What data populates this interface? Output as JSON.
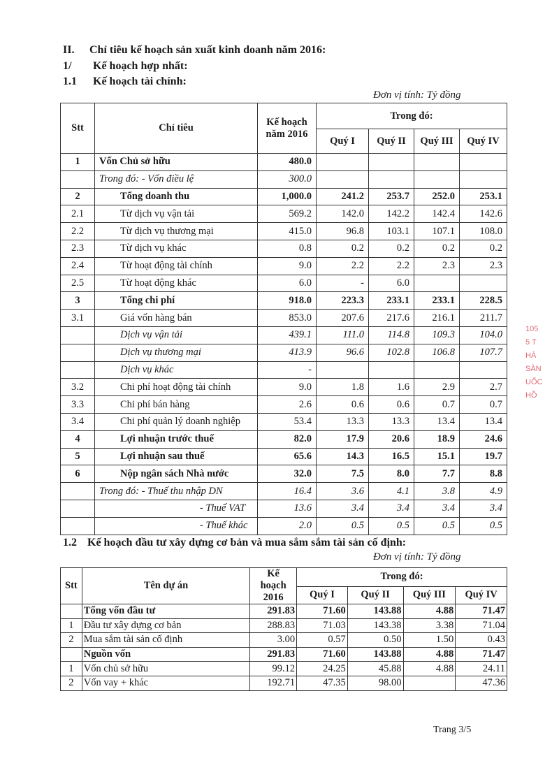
{
  "headings": {
    "section": "II.",
    "section_title": "Chỉ tiêu kế hoạch sản xuất kinh doanh năm 2016:",
    "sub1": "1/",
    "sub1_title": "Kế hoạch hợp nhất:",
    "sub11": "1.1",
    "sub11_title": "Kế hoạch tài chính:",
    "sub12": "1.2",
    "sub12_title": "Kế hoạch đầu tư xây dựng cơ bản và mua sắm sắm tài sản cố định:"
  },
  "unit_label": "Đơn vị tính: Tỷ đồng",
  "table1": {
    "headers": {
      "stt": "Stt",
      "item": "Chỉ tiêu",
      "plan": "Kế hoạch năm 2016",
      "of_which": "Trong đó:",
      "q1": "Quý I",
      "q2": "Quý II",
      "q3": "Quý III",
      "q4": "Quý IV"
    },
    "rows": [
      {
        "stt": "1",
        "label": "Vốn Chủ sở hữu",
        "plan": "480.0",
        "q": [
          "",
          "",
          "",
          ""
        ],
        "style": "bold",
        "indent": 0
      },
      {
        "stt": "",
        "label": "Trong đó: - Vốn điều lệ",
        "plan": "300.0",
        "q": [
          "",
          "",
          "",
          ""
        ],
        "style": "italic",
        "indent": 0
      },
      {
        "stt": "2",
        "label": "Tổng doanh thu",
        "plan": "1,000.0",
        "q": [
          "241.2",
          "253.7",
          "252.0",
          "253.1"
        ],
        "style": "bold",
        "indent": 1
      },
      {
        "stt": "2.1",
        "label": "Từ dịch vụ vận tải",
        "plan": "569.2",
        "q": [
          "142.0",
          "142.2",
          "142.4",
          "142.6"
        ],
        "style": "normal",
        "indent": 1
      },
      {
        "stt": "2.2",
        "label": "Từ dịch vụ thương mại",
        "plan": "415.0",
        "q": [
          "96.8",
          "103.1",
          "107.1",
          "108.0"
        ],
        "style": "normal",
        "indent": 1
      },
      {
        "stt": "2.3",
        "label": "Từ dịch vụ khác",
        "plan": "0.8",
        "q": [
          "0.2",
          "0.2",
          "0.2",
          "0.2"
        ],
        "style": "normal",
        "indent": 1
      },
      {
        "stt": "2.4",
        "label": "Từ hoạt động tài chính",
        "plan": "9.0",
        "q": [
          "2.2",
          "2.2",
          "2.3",
          "2.3"
        ],
        "style": "normal",
        "indent": 1
      },
      {
        "stt": "2.5",
        "label": "Từ hoạt động khác",
        "plan": "6.0",
        "q": [
          "-",
          "6.0",
          "",
          ""
        ],
        "style": "normal",
        "indent": 1
      },
      {
        "stt": "3",
        "label": "Tổng chi phí",
        "plan": "918.0",
        "q": [
          "223.3",
          "233.1",
          "233.1",
          "228.5"
        ],
        "style": "bold",
        "indent": 1
      },
      {
        "stt": "3.1",
        "label": "Giá vốn hàng bán",
        "plan": "853.0",
        "q": [
          "207.6",
          "217.6",
          "216.1",
          "211.7"
        ],
        "style": "normal",
        "indent": 1
      },
      {
        "stt": "",
        "label": "Dịch vụ vận tải",
        "plan": "439.1",
        "q": [
          "111.0",
          "114.8",
          "109.3",
          "104.0"
        ],
        "style": "italic",
        "indent": 1
      },
      {
        "stt": "",
        "label": "Dịch vụ thương mại",
        "plan": "413.9",
        "q": [
          "96.6",
          "102.8",
          "106.8",
          "107.7"
        ],
        "style": "italic",
        "indent": 1
      },
      {
        "stt": "",
        "label": "Dịch vụ khác",
        "plan": "-",
        "q": [
          "",
          "",
          "",
          ""
        ],
        "style": "italic",
        "indent": 1
      },
      {
        "stt": "3.2",
        "label": "Chi phí hoạt động tài chính",
        "plan": "9.0",
        "q": [
          "1.8",
          "1.6",
          "2.9",
          "2.7"
        ],
        "style": "normal",
        "indent": 1
      },
      {
        "stt": "3.3",
        "label": "Chi phí bán hàng",
        "plan": "2.6",
        "q": [
          "0.6",
          "0.6",
          "0.7",
          "0.7"
        ],
        "style": "normal",
        "indent": 1
      },
      {
        "stt": "3.4",
        "label": "Chi phí quản lý doanh nghiệp",
        "plan": "53.4",
        "q": [
          "13.3",
          "13.3",
          "13.4",
          "13.4"
        ],
        "style": "normal",
        "indent": 1
      },
      {
        "stt": "4",
        "label": "Lợi nhuận trước thuế",
        "plan": "82.0",
        "q": [
          "17.9",
          "20.6",
          "18.9",
          "24.6"
        ],
        "style": "bold",
        "indent": 1
      },
      {
        "stt": "5",
        "label": "Lợi nhuận sau thuế",
        "plan": "65.6",
        "q": [
          "14.3",
          "16.5",
          "15.1",
          "19.7"
        ],
        "style": "bold",
        "indent": 1
      },
      {
        "stt": "6",
        "label": "Nộp ngân sách Nhà nước",
        "plan": "32.0",
        "q": [
          "7.5",
          "8.0",
          "7.7",
          "8.8"
        ],
        "style": "bold",
        "indent": 1
      },
      {
        "stt": "",
        "label": "Trong đó: - Thuế thu nhập DN",
        "plan": "16.4",
        "q": [
          "3.6",
          "4.1",
          "3.8",
          "4.9"
        ],
        "style": "italic",
        "indent": 0
      },
      {
        "stt": "",
        "label": "- Thuế VAT",
        "plan": "13.6",
        "q": [
          "3.4",
          "3.4",
          "3.4",
          "3.4"
        ],
        "style": "italic",
        "indent": 2
      },
      {
        "stt": "",
        "label": "- Thuế khác",
        "plan": "2.0",
        "q": [
          "0.5",
          "0.5",
          "0.5",
          "0.5"
        ],
        "style": "italic",
        "indent": 2
      }
    ]
  },
  "table2": {
    "headers": {
      "stt": "Stt",
      "item": "Tên dự án",
      "plan": "Kế hoạch 2016",
      "of_which": "Trong đó:",
      "q1": "Quý I",
      "q2": "Quý II",
      "q3": "Quý III",
      "q4": "Quý IV"
    },
    "rows": [
      {
        "stt": "",
        "label": "Tổng vốn đầu tư",
        "plan": "291.83",
        "q": [
          "71.60",
          "143.88",
          "4.88",
          "71.47"
        ],
        "style": "bold"
      },
      {
        "stt": "1",
        "label": "Đầu tư xây dựng cơ bản",
        "plan": "288.83",
        "q": [
          "71.03",
          "143.38",
          "3.38",
          "71.04"
        ],
        "style": "normal"
      },
      {
        "stt": "2",
        "label": "Mua sắm tài sản cố định",
        "plan": "3.00",
        "q": [
          "0.57",
          "0.50",
          "1.50",
          "0.43"
        ],
        "style": "normal"
      },
      {
        "stt": "",
        "label": "Nguồn vốn",
        "plan": "291.83",
        "q": [
          "71.60",
          "143.88",
          "4.88",
          "71.47"
        ],
        "style": "bold"
      },
      {
        "stt": "1",
        "label": "Vốn chủ sở hữu",
        "plan": "99.12",
        "q": [
          "24.25",
          "45.88",
          "4.88",
          "24.11"
        ],
        "style": "normal"
      },
      {
        "stt": "2",
        "label": "Vốn vay + khác",
        "plan": "192.71",
        "q": [
          "47.35",
          "98.00",
          "",
          "47.36"
        ],
        "style": "normal"
      }
    ]
  },
  "stamp": {
    "text_lines": [
      "105",
      "5 T",
      "HÀ",
      "SÀN",
      "UỐC",
      "HỒ"
    ],
    "color": "#d9505a"
  },
  "footer": "Trang 3/5"
}
